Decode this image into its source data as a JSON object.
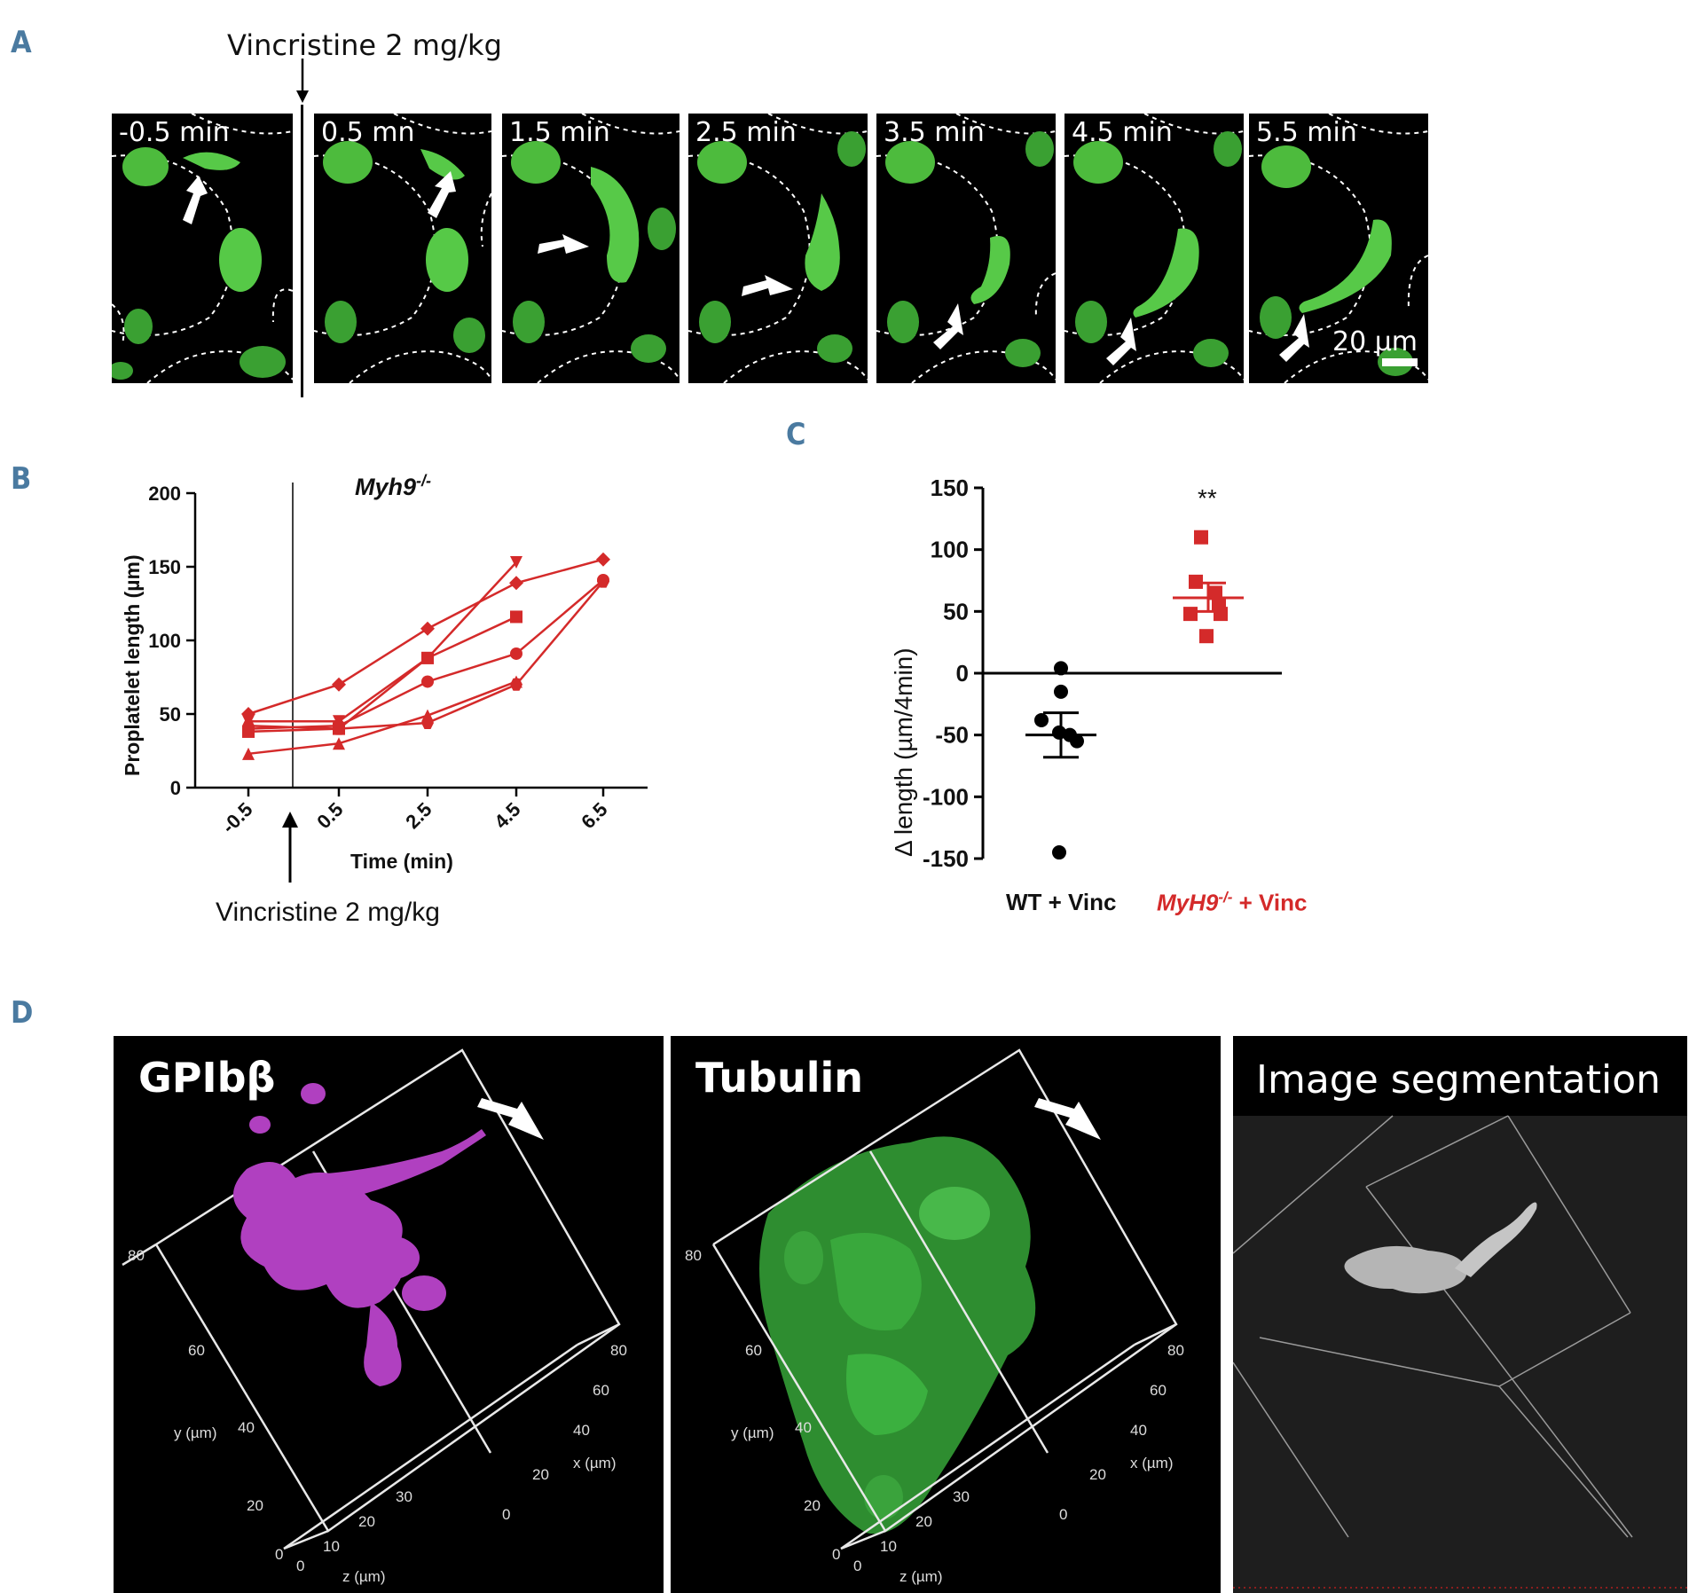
{
  "panel_labels": {
    "a": "A",
    "b": "B",
    "c": "C",
    "d": "D"
  },
  "panel_a": {
    "injection_label": "Vincristine 2 mg/kg",
    "frames": [
      "-0.5 min",
      "0.5 mn",
      "1.5 min",
      "2.5 min",
      "3.5 min",
      "4.5 min",
      "5.5 min"
    ],
    "scale_bar": "20 µm"
  },
  "panel_b": {
    "chart_data": {
      "type": "line",
      "title": "Myh9",
      "title_superscript": "-/-",
      "xlabel": "Time (min)",
      "ylabel": "Proplatelet length (µm)",
      "x_ticks": [
        "-0.5",
        "0.5",
        "2.5",
        "4.5",
        "6.5"
      ],
      "x": [
        -0.5,
        0.5,
        2.5,
        4.5,
        6.5
      ],
      "ylim": [
        0,
        200
      ],
      "y_ticks": [
        "0",
        "50",
        "100",
        "150",
        "200"
      ],
      "annotation": "Vincristine 2 mg/kg",
      "color": "#d42a2a",
      "series": [
        {
          "marker": "diamond",
          "values": [
            50,
            70,
            108,
            139,
            155
          ]
        },
        {
          "marker": "triangle-down",
          "values": [
            45,
            45,
            88,
            153,
            null
          ]
        },
        {
          "marker": "square",
          "values": [
            38,
            40,
            88,
            116,
            null
          ]
        },
        {
          "marker": "circle",
          "values": [
            40,
            42,
            72,
            91,
            141
          ]
        },
        {
          "marker": "hexagon",
          "values": [
            42,
            40,
            44,
            70,
            140
          ]
        },
        {
          "marker": "triangle",
          "values": [
            23,
            30,
            49,
            72,
            null
          ]
        }
      ]
    }
  },
  "panel_c": {
    "chart_data": {
      "type": "scatter",
      "ylabel": "Δ length (µm/4min)",
      "ylim": [
        -150,
        150
      ],
      "y_ticks": [
        "150",
        "100",
        "50",
        "0",
        "-50",
        "-100",
        "-150"
      ],
      "categories": [
        "WT + Vinc",
        "MyH9"
      ],
      "category2_superscript": "-/-",
      "category2_suffix": "+ Vinc",
      "significance": "**",
      "groups": [
        {
          "name": "WT + Vinc",
          "color": "#000000",
          "marker": "circle",
          "values": [
            4,
            -15,
            -38,
            -50,
            -48,
            -55,
            -145
          ],
          "mean": -50,
          "sem_low": -68,
          "sem_high": -32
        },
        {
          "name": "MyH9-/- + Vinc",
          "color": "#d42a2a",
          "marker": "square",
          "values": [
            110,
            74,
            65,
            56,
            48,
            48,
            30
          ],
          "mean": 61,
          "sem_low": 50,
          "sem_high": 73
        }
      ]
    }
  },
  "panel_d": {
    "panels": [
      {
        "title": "GPIbβ",
        "color": "#c040d0"
      },
      {
        "title": "Tubulin",
        "color": "#3cc84a"
      },
      {
        "title": "Image segmentation",
        "color": "#c8c8c8"
      }
    ],
    "axis_labels": {
      "y": "y (µm)",
      "x": "x (µm)",
      "z": "z (µm)"
    },
    "y_ticks": [
      "80",
      "60",
      "40",
      "20",
      "0"
    ],
    "x_ticks": [
      "80",
      "60",
      "40",
      "20",
      "0"
    ],
    "z_ticks": [
      "0",
      "10",
      "20",
      "30"
    ]
  }
}
